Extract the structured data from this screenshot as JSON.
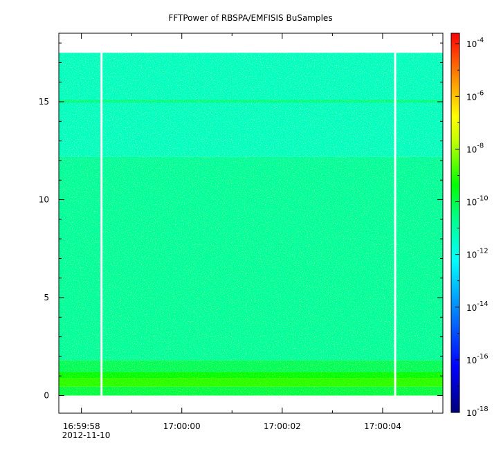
{
  "chart_data": {
    "type": "heatmap",
    "title": "FFTPower of RBSPA/EMFISIS  BuSamples",
    "xlabel": "",
    "ylabel": "",
    "x_ticks": [
      {
        "label": "16:59:58",
        "sub": "2012-11-10",
        "t": 0
      },
      {
        "label": "17:00:00",
        "t": 2
      },
      {
        "label": "17:00:02",
        "t": 4
      },
      {
        "label": "17:00:04",
        "t": 6
      }
    ],
    "x_range_seconds": [
      -0.45,
      7.2
    ],
    "x_minor_step_seconds": 1,
    "y_ticks": [
      0,
      5,
      10,
      15
    ],
    "ylim": [
      -0.9,
      18.5
    ],
    "y_minor_step": 1,
    "data_extent": {
      "y_max": 17.5,
      "gaps_at_seconds": [
        0.4,
        6.25
      ]
    },
    "bands": [
      {
        "y_from": 0,
        "y_to": 0.45,
        "level": -10
      },
      {
        "y_from": 0.45,
        "y_to": 0.9,
        "level": -9
      },
      {
        "y_from": 0.9,
        "y_to": 1.2,
        "level": -9.5
      },
      {
        "y_from": 1.2,
        "y_to": 1.8,
        "level": -10.2
      },
      {
        "y_from": 1.8,
        "y_to": 12.2,
        "level": -10.9
      },
      {
        "y_from": 12.2,
        "y_to": 17.5,
        "level": -11.4
      },
      {
        "y_from": 14.95,
        "y_to": 15.1,
        "level": -10.6
      }
    ],
    "colorbar": {
      "scale": "log",
      "range_exponent": [
        -18,
        -3.6
      ],
      "tick_exponents": [
        -4,
        -6,
        -8,
        -10,
        -12,
        -14,
        -16,
        -18
      ],
      "tick_labels": [
        "10",
        "10",
        "10",
        "10",
        "10",
        "10",
        "10",
        "10"
      ],
      "tick_sups": [
        "-4",
        "-6",
        "-8",
        "-10",
        "-12",
        "-14",
        "-16",
        "-18"
      ],
      "colors": [
        "#000080",
        "#0000ff",
        "#00ffff",
        "#00ff00",
        "#ffff00",
        "#ff8000",
        "#ff0000"
      ]
    }
  }
}
